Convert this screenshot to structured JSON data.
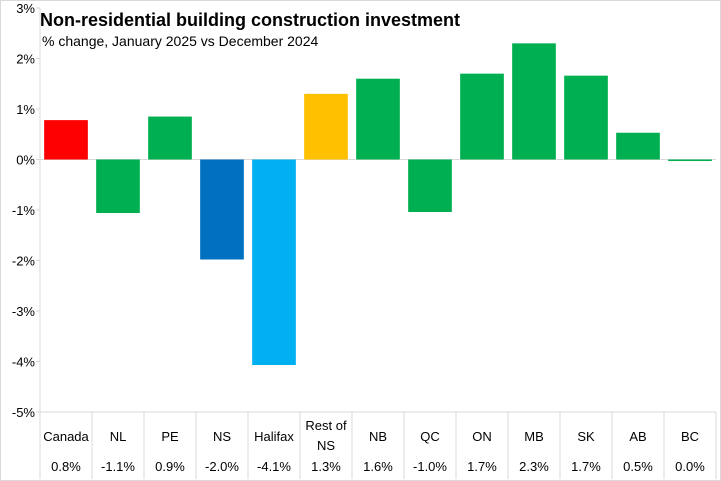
{
  "chart_data": {
    "type": "bar",
    "title": "Non-residential building construction investment",
    "subtitle": "% change, January 2025 vs December 2024",
    "categories": [
      [
        "Canada"
      ],
      [
        "NL"
      ],
      [
        "PE"
      ],
      [
        "NS"
      ],
      [
        "Halifax"
      ],
      [
        "Rest of",
        "NS"
      ],
      [
        "NB"
      ],
      [
        "QC"
      ],
      [
        "ON"
      ],
      [
        "MB"
      ],
      [
        "SK"
      ],
      [
        "AB"
      ],
      [
        "BC"
      ]
    ],
    "values": [
      0.78,
      -1.06,
      0.85,
      -1.98,
      -4.07,
      1.3,
      1.6,
      -1.04,
      1.7,
      2.3,
      1.66,
      0.53,
      -0.03
    ],
    "value_labels": [
      "0.8%",
      "-1.1%",
      "0.9%",
      "-2.0%",
      "-4.1%",
      "1.3%",
      "1.6%",
      "-1.0%",
      "1.7%",
      "2.3%",
      "1.7%",
      "0.5%",
      "0.0%"
    ],
    "colors": [
      "#ff0000",
      "#00b050",
      "#00b050",
      "#0070c0",
      "#00b0f0",
      "#ffc000",
      "#00b050",
      "#00b050",
      "#00b050",
      "#00b050",
      "#00b050",
      "#00b050",
      "#00b050"
    ],
    "ylim": [
      -5,
      3
    ],
    "yticks": [
      3,
      2,
      1,
      0,
      -1,
      -2,
      -3,
      -4,
      -5
    ],
    "ytick_labels": [
      "3%",
      "2%",
      "1%",
      "0%",
      "-1%",
      "-2%",
      "-3%",
      "-4%",
      "-5%"
    ],
    "grid": false,
    "legend": "none",
    "data_table_below": true
  }
}
